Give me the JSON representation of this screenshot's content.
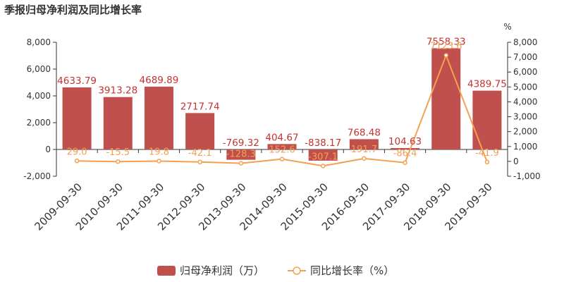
{
  "title": "季报归母净利润及同比增长率",
  "colors": {
    "bar": "#c0504d",
    "line": "#f5a050",
    "label_bar": "#c23531",
    "text": "#333333",
    "axis": "#333333"
  },
  "chart_data": {
    "type": "bar",
    "title": "季报归母净利润及同比增长率",
    "categories": [
      "2009-09-30",
      "2010-09-30",
      "2011-09-30",
      "2012-09-30",
      "2013-09-30",
      "2014-09-30",
      "2015-09-30",
      "2016-09-30",
      "2017-09-30",
      "2018-09-30",
      "2019-09-30"
    ],
    "series": [
      {
        "name": "归母净利润（万）",
        "type": "bar",
        "axis": "left",
        "values": [
          4633.79,
          3913.28,
          4689.89,
          2717.74,
          -769.32,
          404.67,
          -838.17,
          768.48,
          104.63,
          7558.33,
          4389.75
        ],
        "labels": [
          "4633.79",
          "3913.28",
          "4689.89",
          "2717.74",
          "-769.32",
          "404.67",
          "-838.17",
          "768.48",
          "104.63",
          "7558.33",
          "4389.75"
        ]
      },
      {
        "name": "同比增长率（%）",
        "type": "line",
        "axis": "right",
        "values": [
          29.0,
          -15.5,
          19.8,
          -42.1,
          -128.3,
          152.6,
          -307.1,
          191.7,
          -86.4,
          7123.6,
          -41.9
        ],
        "labels": [
          "29.0",
          "-15.5",
          "19.8",
          "-42.1",
          "-128.3",
          "152.6",
          "-307.1",
          "191.7",
          "-86.4",
          "7123.6",
          "-41.9"
        ]
      }
    ],
    "y_left": {
      "min": -2000,
      "max": 8000,
      "ticks": [
        -2000,
        0,
        2000,
        4000,
        6000,
        8000
      ],
      "tick_labels": [
        "-2,000",
        "0",
        "2,000",
        "4,000",
        "6,000",
        "8,000"
      ]
    },
    "y_right": {
      "label": "%",
      "min": -1000,
      "max": 8000,
      "ticks": [
        -1000,
        0,
        1000,
        2000,
        3000,
        4000,
        5000,
        6000,
        7000,
        8000
      ],
      "tick_labels": [
        "-1,000",
        "0",
        "1,000",
        "2,000",
        "3,000",
        "4,000",
        "5,000",
        "6,000",
        "7,000",
        "8,000"
      ]
    },
    "legend": {
      "position": "bottom-center",
      "items": [
        "归母净利润（万）",
        "同比增长率（%）"
      ]
    },
    "grid": false
  }
}
